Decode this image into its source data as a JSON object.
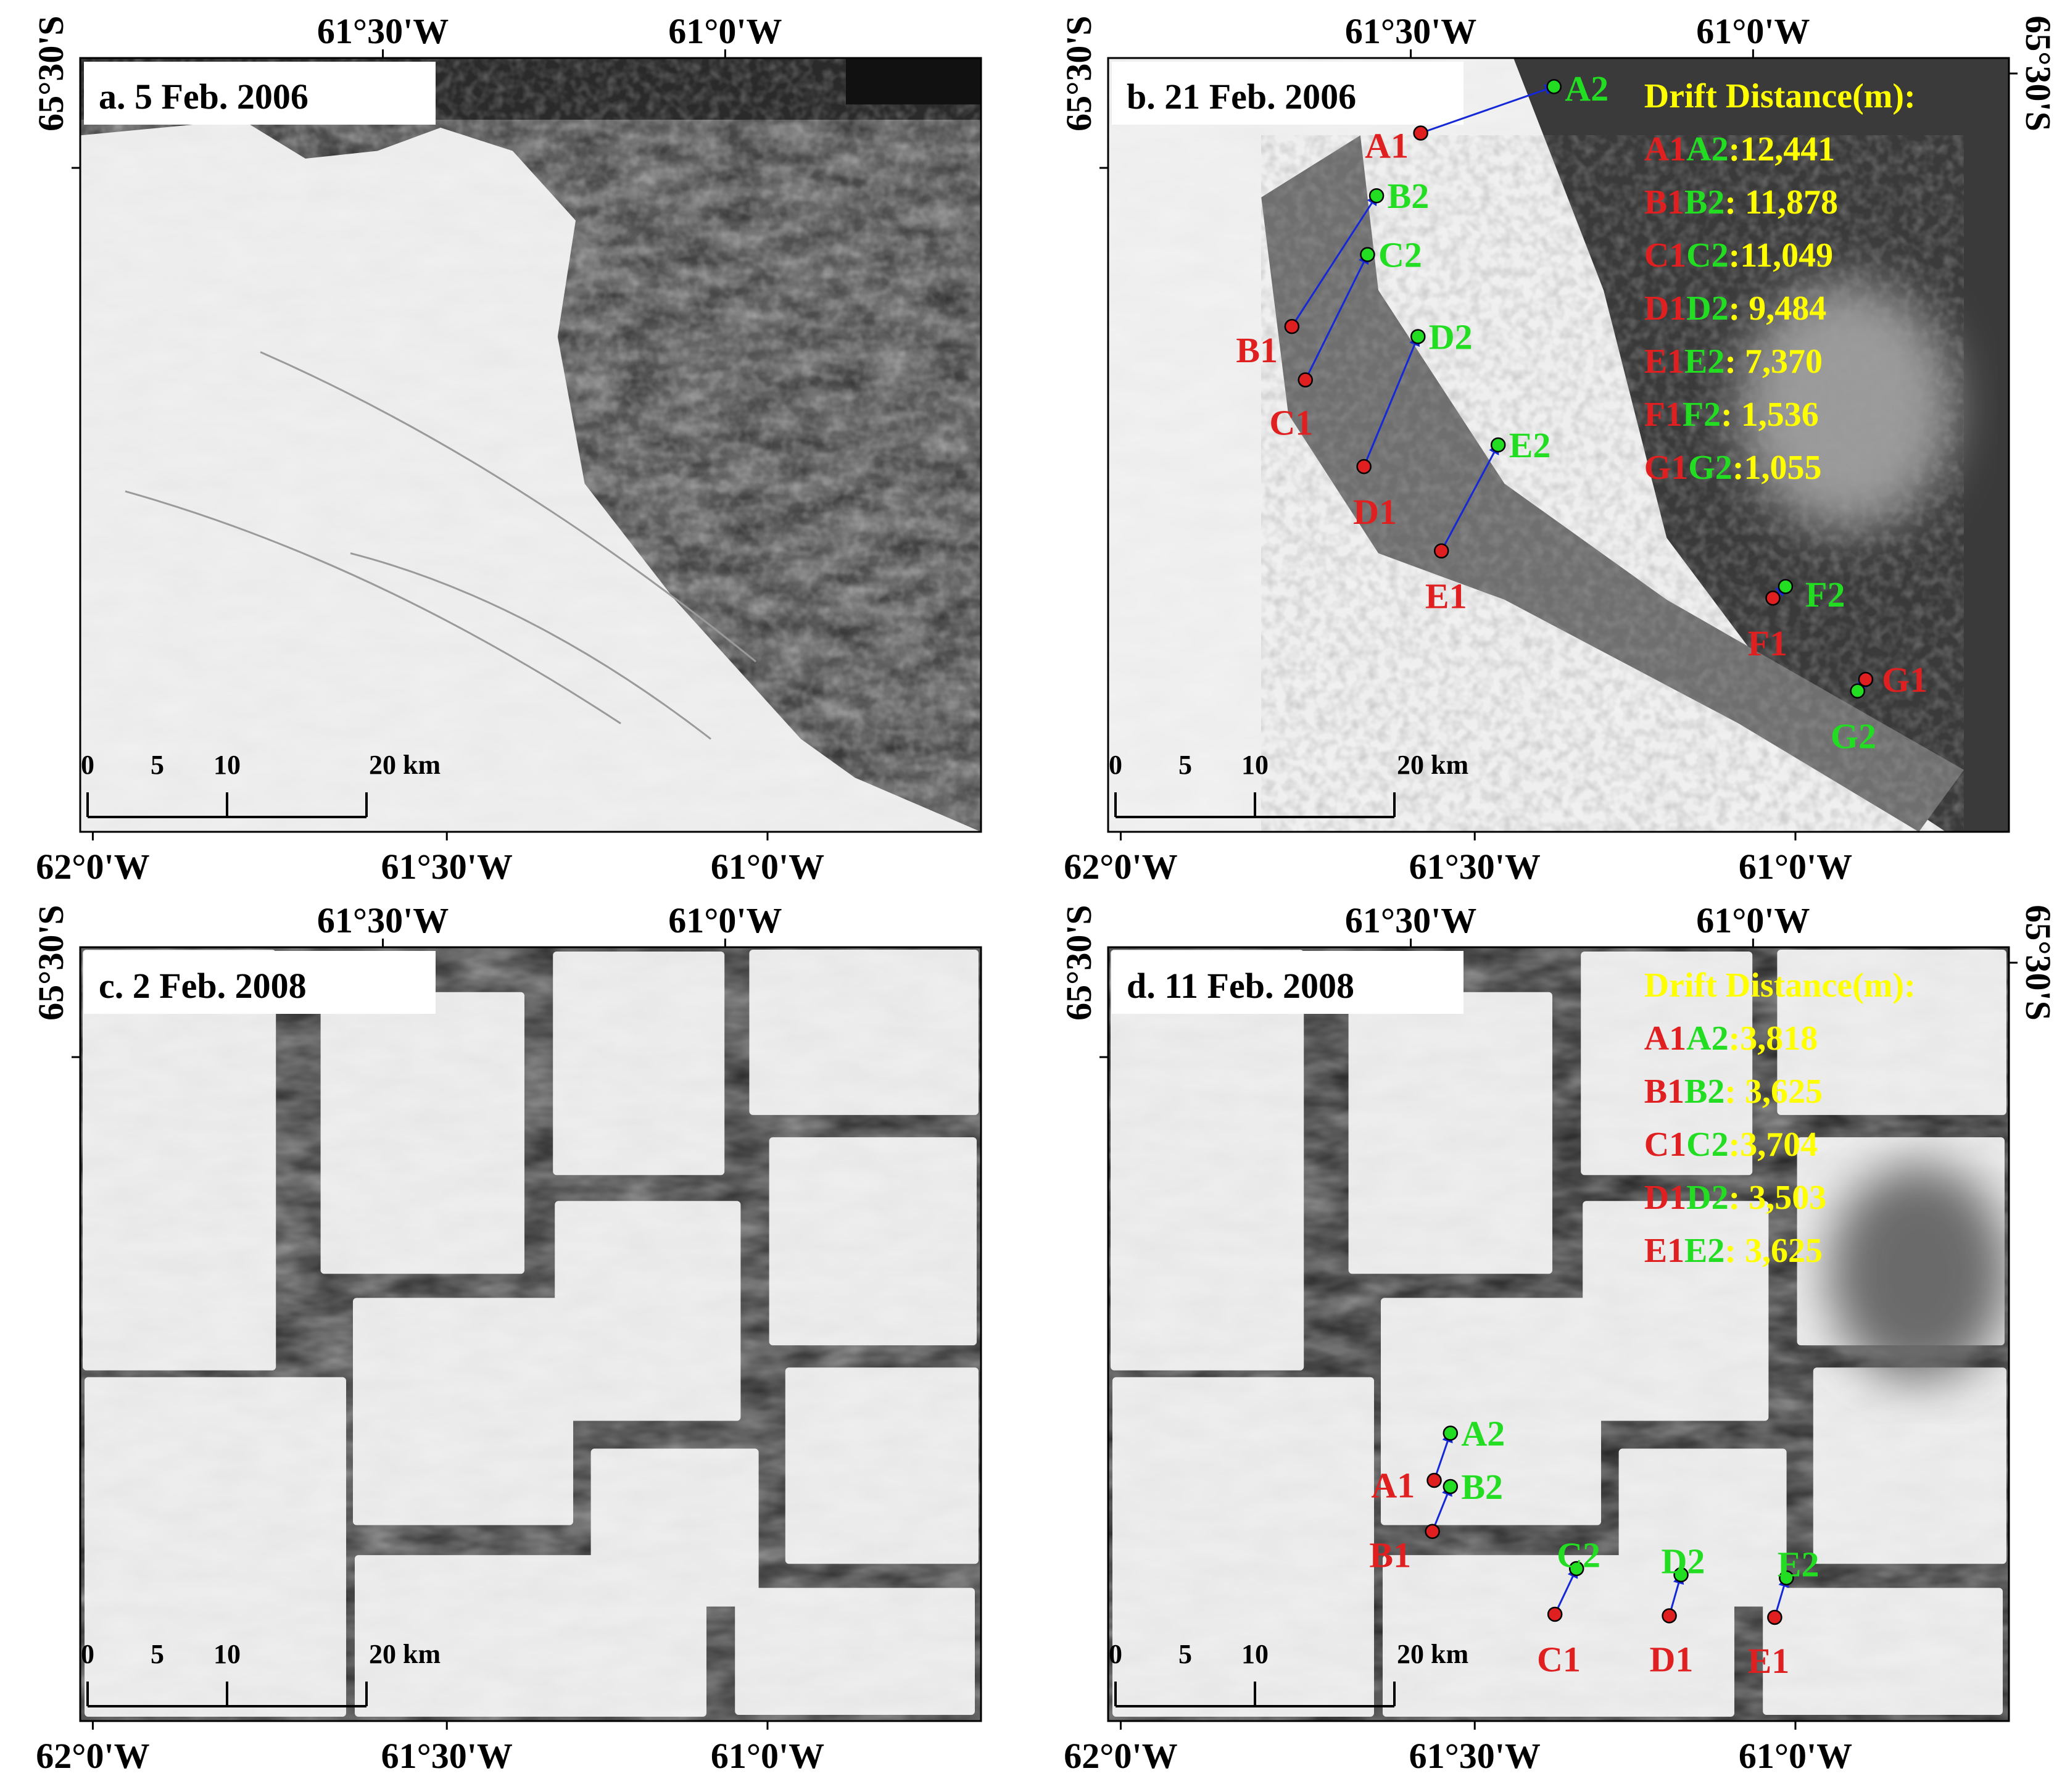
{
  "colors": {
    "start_point": "#e02020",
    "end_point": "#22dd22",
    "arrow": "#1428d8",
    "legend_value": "#ffff00",
    "legend_title": "#ffff00"
  },
  "panels": [
    {
      "id": "a",
      "title": "a. 5 Feb.  2006",
      "top_ticks": [
        "61°30'W",
        "61°0'W"
      ],
      "bottom_ticks": [
        "62°0'W",
        "61°30'W",
        "61°0'W"
      ],
      "left_tick": "65°30'S",
      "right_tick": "",
      "scale_labels": [
        "0",
        "5",
        "10",
        "20 km"
      ],
      "scene": "ice_shelf_open_water",
      "legend": null,
      "points": []
    },
    {
      "id": "b",
      "title": "b.  21 Feb. 2006",
      "top_ticks": [
        "61°30'W",
        "61°0'W"
      ],
      "bottom_ticks": [
        "62°0'W",
        "61°30'W",
        "61°0'W"
      ],
      "left_tick": "65°30'S",
      "right_tick": "65°30'S",
      "scale_labels": [
        "0",
        "5",
        "10",
        "20 km"
      ],
      "scene": "ice_shelf_rift",
      "legend": {
        "title": "Drift Distance(m):",
        "rows": [
          {
            "start": "A1",
            "end": "A2",
            "value": ":12,441"
          },
          {
            "start": "B1",
            "end": "B2",
            "value": ": 11,878"
          },
          {
            "start": "C1",
            "end": "C2",
            "value": ":11,049"
          },
          {
            "start": "D1",
            "end": "D2",
            "value": ": 9,484"
          },
          {
            "start": "E1",
            "end": "E2",
            "value": ": 7,370"
          },
          {
            "start": "F1",
            "end": "F2",
            "value": ": 1,536"
          },
          {
            "start": "G1",
            "end": "G2",
            "value": ":1,055"
          }
        ]
      },
      "points": [
        {
          "name": "A"
        },
        {
          "name": "B"
        },
        {
          "name": "C"
        },
        {
          "name": "D"
        },
        {
          "name": "E"
        },
        {
          "name": "F"
        },
        {
          "name": "G"
        }
      ]
    },
    {
      "id": "c",
      "title": "c. 2 Feb.  2008",
      "top_ticks": [
        "61°30'W",
        "61°0'W"
      ],
      "bottom_ticks": [
        "62°0'W",
        "61°30'W",
        "61°0'W"
      ],
      "left_tick": "65°30'S",
      "right_tick": "",
      "scale_labels": [
        "0",
        "5",
        "10",
        "20 km"
      ],
      "scene": "broken_floes",
      "legend": null,
      "points": []
    },
    {
      "id": "d",
      "title": "d. 11 Feb. 2008",
      "top_ticks": [
        "61°30'W",
        "61°0'W"
      ],
      "bottom_ticks": [
        "62°0'W",
        "61°30'W",
        "61°0'W"
      ],
      "left_tick": "65°30'S",
      "right_tick": "65°30'S",
      "scale_labels": [
        "0",
        "5",
        "10",
        "20 km"
      ],
      "scene": "broken_floes_dark",
      "legend": {
        "title": "Drift  Distance(m):",
        "rows": [
          {
            "start": "A1",
            "end": "A2",
            "value": ":3,818"
          },
          {
            "start": "B1",
            "end": "B2",
            "value": ": 3,625"
          },
          {
            "start": "C1",
            "end": "C2",
            "value": ":3,704"
          },
          {
            "start": "D1",
            "end": "D2",
            "value": ": 3,503"
          },
          {
            "start": "E1",
            "end": "E2",
            "value": ": 3,625"
          }
        ]
      },
      "points": [
        {
          "name": "A"
        },
        {
          "name": "B"
        },
        {
          "name": "C"
        },
        {
          "name": "D"
        },
        {
          "name": "E"
        }
      ]
    }
  ]
}
